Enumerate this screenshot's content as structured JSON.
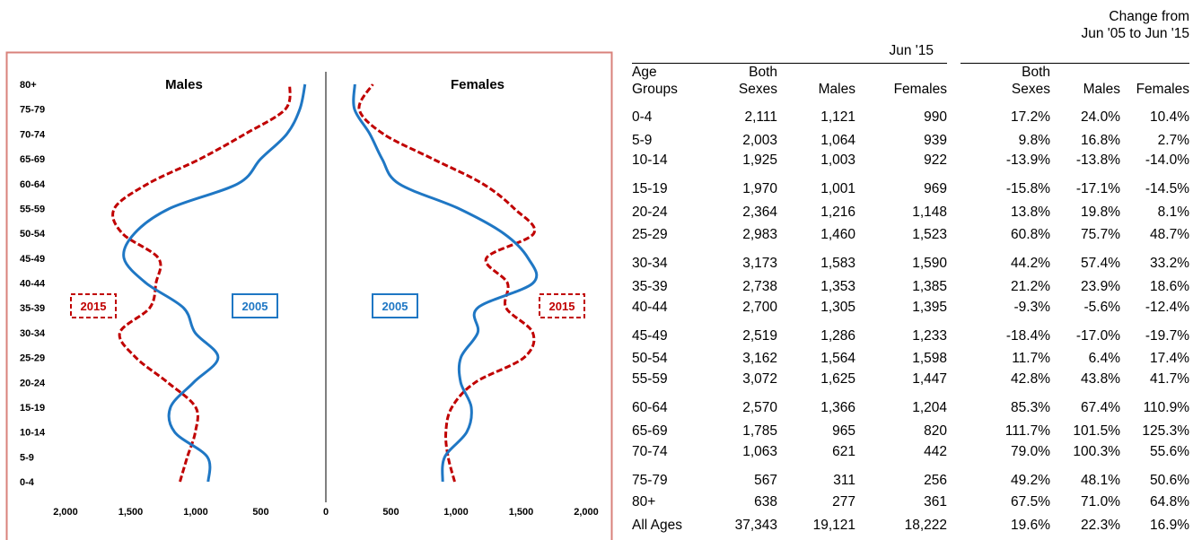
{
  "chart_data": {
    "type": "line",
    "panels": [
      {
        "title": "Males",
        "x_axis_direction": "reversed"
      },
      {
        "title": "Females",
        "x_axis_direction": "normal"
      }
    ],
    "y_categories": [
      "0-4",
      "5-9",
      "10-14",
      "15-19",
      "20-24",
      "25-29",
      "30-34",
      "35-39",
      "40-44",
      "45-49",
      "50-54",
      "55-59",
      "60-64",
      "65-69",
      "70-74",
      "75-79",
      "80+"
    ],
    "x_ticks_left": [
      "2,000",
      "1,500",
      "1,000",
      "500",
      "0"
    ],
    "x_ticks_right": [
      "500",
      "1,000",
      "1,500",
      "2,000"
    ],
    "xlim": [
      0,
      2000
    ],
    "series": [
      {
        "name": "2015",
        "color": "#c00000",
        "style": "dashed",
        "males": [
          1121,
          1064,
          1003,
          1001,
          1216,
          1460,
          1583,
          1353,
          1305,
          1286,
          1564,
          1625,
          1366,
          965,
          621,
          311,
          277
        ],
        "females": [
          990,
          939,
          922,
          969,
          1148,
          1523,
          1590,
          1385,
          1395,
          1233,
          1598,
          1447,
          1204,
          820,
          442,
          256,
          361
        ]
      },
      {
        "name": "2005",
        "color": "#1f77c4",
        "style": "solid",
        "males": [
          904,
          911,
          1162,
          1193,
          1016,
          828,
          1005,
          1094,
          1382,
          1551,
          1470,
          1200,
          676,
          500,
          300,
          200,
          160
        ],
        "females": [
          897,
          914,
          1083,
          1117,
          1036,
          1037,
          1167,
          1166,
          1592,
          1554,
          1365,
          1019,
          561,
          432,
          338,
          220,
          223
        ]
      }
    ],
    "colors": {
      "series_2015": "#c00000",
      "series_2005": "#1f77c4",
      "frame": "#d9827b",
      "axis": "#808080"
    }
  },
  "table": {
    "title_main": "Jun '15",
    "title_change_line1": "Change from",
    "title_change_line2": "Jun '05 to Jun '15",
    "headers": {
      "age_line1": "Age",
      "age_line2": "Groups",
      "both_line1": "Both",
      "both_line2": "Sexes",
      "males": "Males",
      "females": "Females",
      "chg_both_line1": "Both",
      "chg_both_line2": "Sexes",
      "chg_males": "Males",
      "chg_females": "Females"
    },
    "rows": [
      [
        "0-4",
        "2,111",
        "1,121",
        "990",
        "17.2%",
        "24.0%",
        "10.4%"
      ],
      [
        "5-9",
        "2,003",
        "1,064",
        "939",
        "9.8%",
        "16.8%",
        "2.7%"
      ],
      [
        "10-14",
        "1,925",
        "1,003",
        "922",
        "-13.9%",
        "-13.8%",
        "-14.0%"
      ],
      [
        "15-19",
        "1,970",
        "1,001",
        "969",
        "-15.8%",
        "-17.1%",
        "-14.5%"
      ],
      [
        "20-24",
        "2,364",
        "1,216",
        "1,148",
        "13.8%",
        "19.8%",
        "8.1%"
      ],
      [
        "25-29",
        "2,983",
        "1,460",
        "1,523",
        "60.8%",
        "75.7%",
        "48.7%"
      ],
      [
        "30-34",
        "3,173",
        "1,583",
        "1,590",
        "44.2%",
        "57.4%",
        "33.2%"
      ],
      [
        "35-39",
        "2,738",
        "1,353",
        "1,385",
        "21.2%",
        "23.9%",
        "18.6%"
      ],
      [
        "40-44",
        "2,700",
        "1,305",
        "1,395",
        "-9.3%",
        "-5.6%",
        "-12.4%"
      ],
      [
        "45-49",
        "2,519",
        "1,286",
        "1,233",
        "-18.4%",
        "-17.0%",
        "-19.7%"
      ],
      [
        "50-54",
        "3,162",
        "1,564",
        "1,598",
        "11.7%",
        "6.4%",
        "17.4%"
      ],
      [
        "55-59",
        "3,072",
        "1,625",
        "1,447",
        "42.8%",
        "43.8%",
        "41.7%"
      ],
      [
        "60-64",
        "2,570",
        "1,366",
        "1,204",
        "85.3%",
        "67.4%",
        "110.9%"
      ],
      [
        "65-69",
        "1,785",
        "965",
        "820",
        "111.7%",
        "101.5%",
        "125.3%"
      ],
      [
        "70-74",
        "1,063",
        "621",
        "442",
        "79.0%",
        "100.3%",
        "55.6%"
      ],
      [
        "75-79",
        "567",
        "311",
        "256",
        "49.2%",
        "48.1%",
        "50.6%"
      ],
      [
        "80+",
        "638",
        "277",
        "361",
        "67.5%",
        "71.0%",
        "64.8%"
      ],
      [
        "All Ages",
        "37,343",
        "19,121",
        "18,222",
        "19.6%",
        "22.3%",
        "16.9%"
      ]
    ]
  }
}
